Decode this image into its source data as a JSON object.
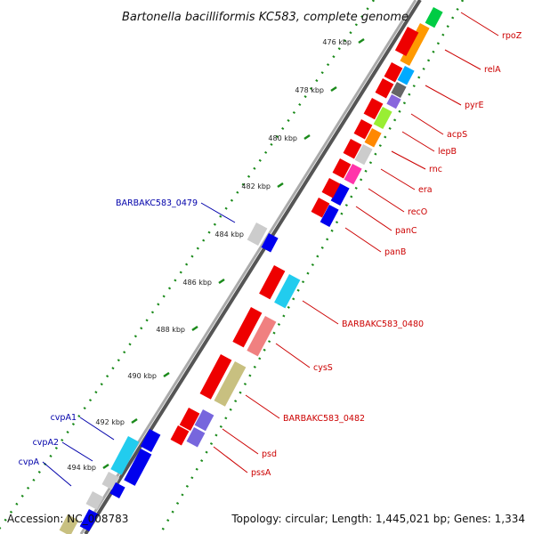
{
  "title": "Bartonella bacilliformis KC583, complete genome",
  "footer": {
    "accession": "Accession: NC_008783",
    "summary": "Topology: circular; Length: 1,445,021 bp; Genes: 1,334"
  },
  "colors": {
    "forward_strand": "#ee0000",
    "reverse_strand": "#0000dd",
    "scale_ticks": "#228b22",
    "backbone": "#888888",
    "label_forward": "#cc0000",
    "label_reverse": "#0000aa"
  },
  "scale": [
    {
      "label": "476 kbp"
    },
    {
      "label": "478 kbp"
    },
    {
      "label": "480 kbp"
    },
    {
      "label": "482 kbp"
    },
    {
      "label": "484 kbp"
    },
    {
      "label": "486 kbp"
    },
    {
      "label": "488 kbp"
    },
    {
      "label": "490 kbp"
    },
    {
      "label": "492 kbp"
    },
    {
      "label": "494 kbp"
    }
  ],
  "gene_labels_right": [
    {
      "name": "rpoZ"
    },
    {
      "name": "relA"
    },
    {
      "name": "pyrE"
    },
    {
      "name": "acpS"
    },
    {
      "name": "lepB"
    },
    {
      "name": "rnc"
    },
    {
      "name": "era"
    },
    {
      "name": "recO"
    },
    {
      "name": "panC"
    },
    {
      "name": "panB"
    },
    {
      "name": "BARBAKC583_0480"
    },
    {
      "name": "cysS"
    },
    {
      "name": "BARBAKC583_0482"
    },
    {
      "name": "psd"
    },
    {
      "name": "pssA"
    }
  ],
  "gene_labels_left": [
    {
      "name": "BARBAKC583_0479"
    },
    {
      "name": "cvpA1"
    },
    {
      "name": "cvpA2"
    },
    {
      "name": "cvpA"
    }
  ]
}
